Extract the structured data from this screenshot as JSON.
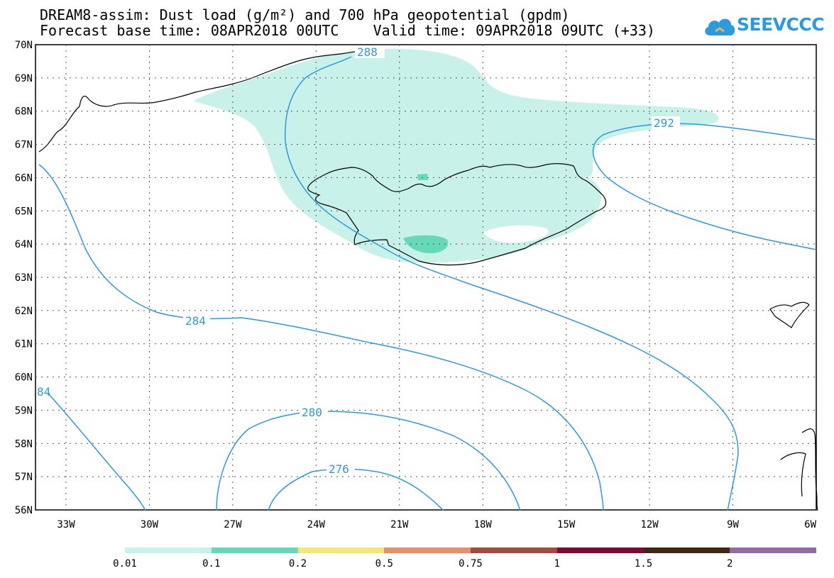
{
  "header": {
    "title_line1": "DREAM8-assim: Dust load (g/m²) and 700 hPa geopotential (gpdm)",
    "title_line2": "Forecast base time: 08APR2018 00UTC    Valid time: 09APR2018 09UTC (+33)"
  },
  "logo": {
    "text": "SEEVCCC",
    "icon": "cloud-icon",
    "color": "#2a9be0"
  },
  "map": {
    "lat_labels": [
      "70N",
      "69N",
      "68N",
      "67N",
      "66N",
      "65N",
      "64N",
      "63N",
      "62N",
      "61N",
      "60N",
      "59N",
      "58N",
      "57N",
      "56N"
    ],
    "lon_labels": [
      "33W",
      "30W",
      "27W",
      "24W",
      "21W",
      "18W",
      "15W",
      "12W",
      "9W",
      "6W"
    ],
    "contour_labels": [
      "288",
      "292",
      "284",
      "84",
      "280",
      "276"
    ],
    "contour_color": "#2a9be0",
    "dust_color": "#c8f1ea",
    "dust_high_color": "#64dab9"
  },
  "legend": {
    "colors": [
      "#c8f1ea",
      "#64dab9",
      "#f5e678",
      "#e8906c",
      "#a24d42",
      "#7d0a33",
      "#3d2716",
      "#8e6ea2"
    ],
    "labels": [
      "0.01",
      "0.1",
      "0.2",
      "0.5",
      "0.75",
      "1",
      "1.5",
      "2"
    ]
  }
}
